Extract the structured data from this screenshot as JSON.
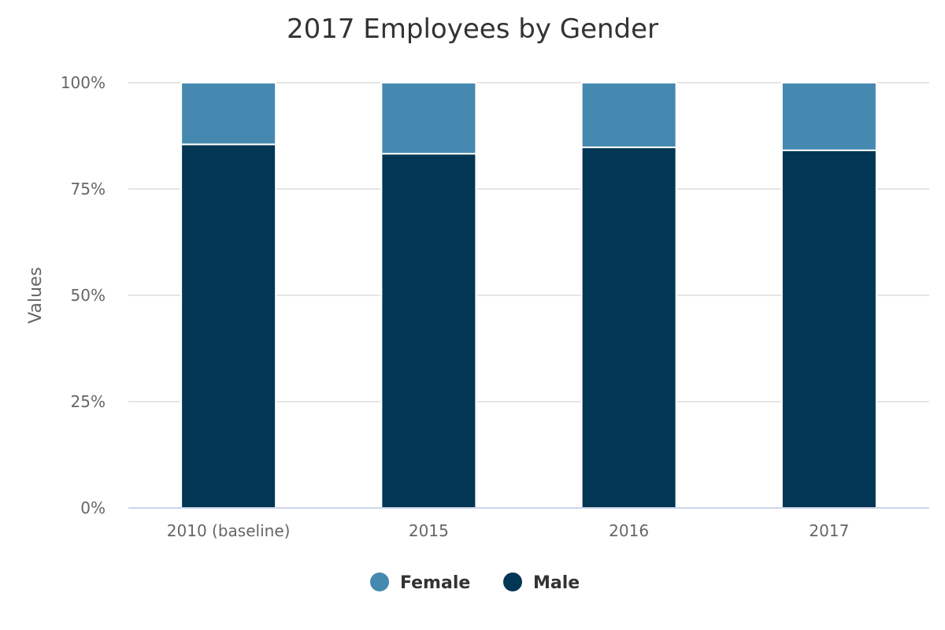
{
  "chart_data": {
    "type": "bar",
    "stacked": "percent",
    "title": "2017 Employees by Gender",
    "xlabel": "",
    "ylabel": "Values",
    "categories": [
      "2010 (baseline)",
      "2015",
      "2016",
      "2017"
    ],
    "series": [
      {
        "name": "Female",
        "color": "#4589b1",
        "values": [
          14.5,
          16.7,
          15.2,
          15.9
        ]
      },
      {
        "name": "Male",
        "color": "#023655",
        "values": [
          85.5,
          83.3,
          84.8,
          84.1
        ]
      }
    ],
    "ylim": [
      0,
      100
    ],
    "yticks": [
      0,
      25,
      50,
      75,
      100
    ],
    "ytick_labels": [
      "0%",
      "25%",
      "50%",
      "75%",
      "100%"
    ],
    "grid": true,
    "legend": {
      "placement": "bottom-center",
      "items": [
        {
          "label": "Female",
          "color": "#4589b1"
        },
        {
          "label": "Male",
          "color": "#023655"
        }
      ]
    }
  }
}
